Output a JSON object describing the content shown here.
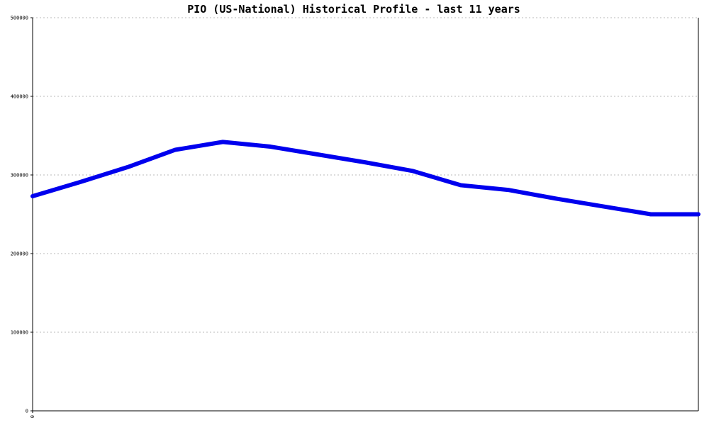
{
  "chart_data": {
    "type": "line",
    "title": "PIO (US-National) Historical Profile - last 11 years",
    "xlabel": "",
    "ylabel": "",
    "x": [
      0,
      1,
      2,
      3,
      4,
      5,
      6,
      7,
      8,
      9,
      10,
      11,
      12,
      13,
      14
    ],
    "x_tick_labels": [
      "0"
    ],
    "ylim": [
      0,
      500000
    ],
    "y_ticks": [
      0,
      100000,
      200000,
      300000,
      400000,
      500000
    ],
    "y_tick_labels": [
      "0",
      "100000",
      "200000",
      "300000",
      "400000",
      "500000"
    ],
    "grid": true,
    "series": [
      {
        "color": "#0000ee",
        "values": [
          273000,
          291000,
          310000,
          332000,
          342000,
          336000,
          326000,
          316000,
          305000,
          287000,
          281000,
          270000,
          260000,
          250000,
          250000
        ]
      }
    ]
  }
}
